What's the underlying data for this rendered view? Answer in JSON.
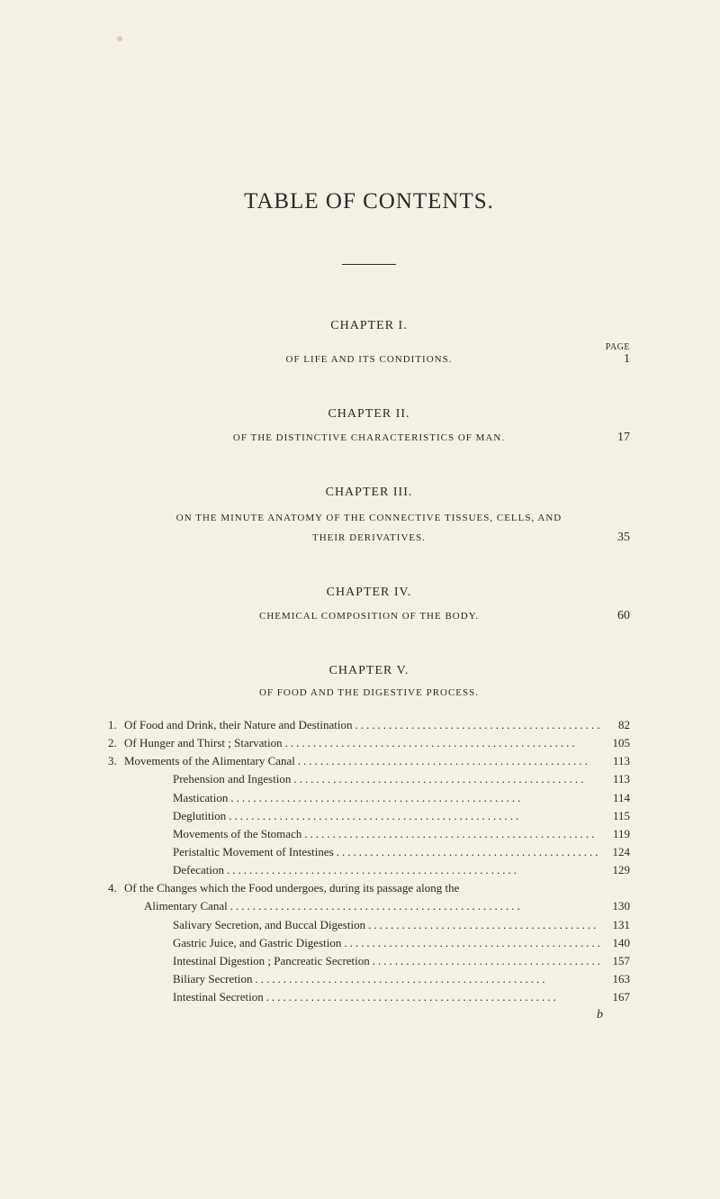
{
  "colors": {
    "background": "#f4f0e5",
    "text": "#2a2a24",
    "spot": "#d8d0b8"
  },
  "typography": {
    "body_font": "Georgia, Times New Roman, serif",
    "title_fontsize": 25,
    "chapter_fontsize": 14,
    "subtitle_fontsize": 11,
    "toc_fontsize": 13,
    "page_label_fontsize": 10
  },
  "title": "TABLE OF CONTENTS.",
  "page_label": "PAGE",
  "chapters": [
    {
      "name": "CHAPTER I.",
      "subtitle": "OF LIFE AND ITS CONDITIONS.",
      "page": "1"
    },
    {
      "name": "CHAPTER II.",
      "subtitle": "OF THE DISTINCTIVE CHARACTERISTICS OF MAN.",
      "page": "17"
    },
    {
      "name": "CHAPTER III.",
      "subtitle_line1": "ON THE MINUTE ANATOMY OF THE CONNECTIVE TISSUES, CELLS, AND",
      "subtitle_line2": "THEIR DERIVATIVES.",
      "page": "35"
    },
    {
      "name": "CHAPTER IV.",
      "subtitle": "CHEMICAL COMPOSITION OF THE BODY.",
      "page": "60"
    },
    {
      "name": "CHAPTER V.",
      "subtitle": "OF FOOD AND THE DIGESTIVE PROCESS."
    }
  ],
  "toc": [
    {
      "num": "1.",
      "indent": 0,
      "text": "Of Food and Drink, their Nature and Destination",
      "page": "82"
    },
    {
      "num": "2.",
      "indent": 0,
      "text": "Of Hunger and Thirst ; Starvation",
      "page": "105"
    },
    {
      "num": "3.",
      "indent": 0,
      "text": "Movements of the Alimentary Canal",
      "page": "113"
    },
    {
      "num": "",
      "indent": 1,
      "text": "Prehension and Ingestion",
      "page": "113"
    },
    {
      "num": "",
      "indent": 1,
      "text": "Mastication",
      "page": "114"
    },
    {
      "num": "",
      "indent": 1,
      "text": "Deglutition",
      "page": "115"
    },
    {
      "num": "",
      "indent": 1,
      "text": "Movements of the Stomach",
      "page": "119"
    },
    {
      "num": "",
      "indent": 1,
      "text": "Peristaltic Movement of Intestines",
      "page": "124"
    },
    {
      "num": "",
      "indent": 1,
      "text": "Defecation",
      "page": "129"
    },
    {
      "num": "4.",
      "indent": 0,
      "text": "Of the Changes which the Food undergoes, during its passage along the",
      "page": "",
      "nopagedots": true
    },
    {
      "num": "",
      "indent": 1,
      "text": "Alimentary Canal",
      "page": "130",
      "continuation": true
    },
    {
      "num": "",
      "indent": 1,
      "text": "Salivary Secretion, and Buccal Digestion",
      "page": "131"
    },
    {
      "num": "",
      "indent": 1,
      "text": "Gastric Juice, and Gastric Digestion",
      "page": "140"
    },
    {
      "num": "",
      "indent": 1,
      "text": "Intestinal Digestion ; Pancreatic Secretion",
      "page": "157"
    },
    {
      "num": "",
      "indent": 1,
      "text": "Biliary Secretion",
      "page": "163"
    },
    {
      "num": "",
      "indent": 1,
      "text": "Intestinal Secretion",
      "page": "167"
    }
  ],
  "footer_mark": "b",
  "dots": "...................................................."
}
